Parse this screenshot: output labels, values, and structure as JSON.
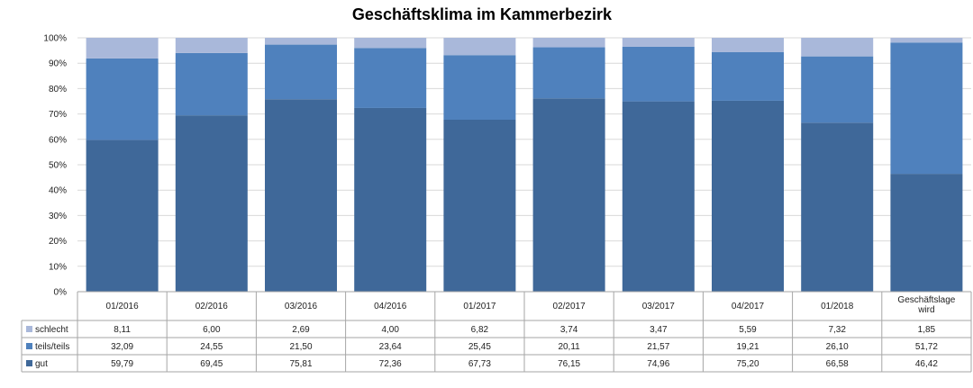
{
  "chart_data": {
    "type": "bar",
    "stacked": true,
    "title": "Geschäftsklima im Kammerbezirk",
    "xlabel": "",
    "ylabel": "",
    "ylim": [
      0,
      100
    ],
    "y_ticks": [
      "0%",
      "10%",
      "20%",
      "30%",
      "40%",
      "50%",
      "60%",
      "70%",
      "80%",
      "90%",
      "100%"
    ],
    "categories": [
      "01/2016",
      "02/2016",
      "03/2016",
      "04/2016",
      "01/2017",
      "02/2017",
      "03/2017",
      "04/2017",
      "01/2018",
      "Geschäftslage wird"
    ],
    "series": [
      {
        "name": "gut",
        "color": "#3f6899",
        "values": [
          59.79,
          69.45,
          75.81,
          72.36,
          67.73,
          76.15,
          74.96,
          75.2,
          66.58,
          46.42
        ],
        "labels": [
          "59,79",
          "69,45",
          "75,81",
          "72,36",
          "67,73",
          "76,15",
          "74,96",
          "75,20",
          "66,58",
          "46,42"
        ]
      },
      {
        "name": "teils/teils",
        "color": "#4f81bd",
        "values": [
          32.09,
          24.55,
          21.5,
          23.64,
          25.45,
          20.11,
          21.57,
          19.21,
          26.1,
          51.72
        ],
        "labels": [
          "32,09",
          "24,55",
          "21,50",
          "23,64",
          "25,45",
          "20,11",
          "21,57",
          "19,21",
          "26,10",
          "51,72"
        ]
      },
      {
        "name": "schlecht",
        "color": "#a9b8da",
        "values": [
          8.11,
          6.0,
          2.69,
          4.0,
          6.82,
          3.74,
          3.47,
          5.59,
          7.32,
          1.85
        ],
        "labels": [
          "8,11",
          "6,00",
          "2,69",
          "4,00",
          "6,82",
          "3,74",
          "3,47",
          "5,59",
          "7,32",
          "1,85"
        ]
      }
    ],
    "table_row_order": [
      "schlecht",
      "teils/teils",
      "gut"
    ],
    "grid": true,
    "legend": "data-table"
  }
}
